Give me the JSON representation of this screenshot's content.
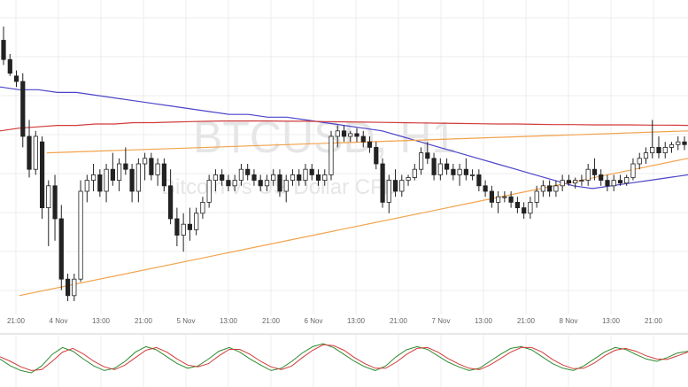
{
  "watermark": {
    "symbol": "BTCUSD, H1",
    "description": "Bitcoin vs US Dollar CFD"
  },
  "colors": {
    "background": "#ffffff",
    "grid": "#ececec",
    "candle_up": "#ffffff",
    "candle_down": "#222222",
    "wick": "#222222",
    "sma_fast": "#4b44c9",
    "sma_slow": "#d23b3b",
    "trendline": "#f2a24b",
    "stoch_k": "#2e8b2e",
    "stoch_d": "#d23b3b",
    "separator": "#cfcfcf"
  },
  "chart_data": [
    {
      "type": "candlestick",
      "title": "",
      "instrument": "BTCUSD, H1",
      "x_tick_labels": [
        "21:00",
        "4 Nov",
        "13:00",
        "21:00",
        "5 Nov",
        "13:00",
        "21:00",
        "6 Nov",
        "13:00",
        "21:00",
        "7 Nov",
        "13:00",
        "21:00",
        "8 Nov",
        "13:00",
        "21:00"
      ],
      "grid": true,
      "candles_ohlc_relative": [
        [
          0.95,
          1.0,
          0.86,
          0.88
        ],
        [
          0.88,
          0.9,
          0.82,
          0.83
        ],
        [
          0.82,
          0.84,
          0.78,
          0.8
        ],
        [
          0.8,
          0.83,
          0.56,
          0.6
        ],
        [
          0.6,
          0.66,
          0.45,
          0.48
        ],
        [
          0.48,
          0.62,
          0.46,
          0.6
        ],
        [
          0.58,
          0.6,
          0.3,
          0.34
        ],
        [
          0.34,
          0.44,
          0.2,
          0.42
        ],
        [
          0.42,
          0.46,
          0.22,
          0.3
        ],
        [
          0.3,
          0.35,
          0.04,
          0.08
        ],
        [
          0.08,
          0.1,
          0.0,
          0.02
        ],
        [
          0.02,
          0.1,
          0.0,
          0.08
        ],
        [
          0.08,
          0.44,
          0.07,
          0.4
        ],
        [
          0.4,
          0.46,
          0.36,
          0.44
        ],
        [
          0.44,
          0.5,
          0.4,
          0.46
        ],
        [
          0.46,
          0.48,
          0.38,
          0.4
        ],
        [
          0.4,
          0.5,
          0.36,
          0.48
        ],
        [
          0.48,
          0.54,
          0.42,
          0.44
        ],
        [
          0.44,
          0.52,
          0.4,
          0.5
        ],
        [
          0.5,
          0.56,
          0.46,
          0.48
        ],
        [
          0.48,
          0.5,
          0.36,
          0.4
        ],
        [
          0.4,
          0.52,
          0.36,
          0.5
        ],
        [
          0.5,
          0.54,
          0.44,
          0.52
        ],
        [
          0.52,
          0.54,
          0.44,
          0.46
        ],
        [
          0.46,
          0.52,
          0.42,
          0.5
        ],
        [
          0.5,
          0.52,
          0.4,
          0.42
        ],
        [
          0.42,
          0.48,
          0.28,
          0.3
        ],
        [
          0.3,
          0.34,
          0.2,
          0.24
        ],
        [
          0.24,
          0.32,
          0.18,
          0.28
        ],
        [
          0.28,
          0.34,
          0.22,
          0.26
        ],
        [
          0.26,
          0.34,
          0.24,
          0.32
        ],
        [
          0.32,
          0.38,
          0.3,
          0.36
        ],
        [
          0.36,
          0.46,
          0.34,
          0.44
        ],
        [
          0.44,
          0.48,
          0.4,
          0.46
        ],
        [
          0.46,
          0.48,
          0.42,
          0.44
        ],
        [
          0.44,
          0.46,
          0.4,
          0.42
        ],
        [
          0.42,
          0.46,
          0.4,
          0.44
        ],
        [
          0.44,
          0.5,
          0.42,
          0.48
        ],
        [
          0.48,
          0.5,
          0.44,
          0.46
        ],
        [
          0.46,
          0.48,
          0.42,
          0.44
        ],
        [
          0.44,
          0.46,
          0.4,
          0.42
        ],
        [
          0.42,
          0.46,
          0.4,
          0.44
        ],
        [
          0.44,
          0.48,
          0.42,
          0.46
        ],
        [
          0.46,
          0.48,
          0.38,
          0.4
        ],
        [
          0.4,
          0.46,
          0.36,
          0.44
        ],
        [
          0.44,
          0.48,
          0.42,
          0.46
        ],
        [
          0.46,
          0.48,
          0.42,
          0.44
        ],
        [
          0.44,
          0.5,
          0.42,
          0.48
        ],
        [
          0.48,
          0.5,
          0.44,
          0.46
        ],
        [
          0.46,
          0.48,
          0.42,
          0.44
        ],
        [
          0.44,
          0.48,
          0.42,
          0.46
        ],
        [
          0.46,
          0.62,
          0.44,
          0.6
        ],
        [
          0.6,
          0.64,
          0.56,
          0.62
        ],
        [
          0.62,
          0.64,
          0.58,
          0.6
        ],
        [
          0.6,
          0.62,
          0.58,
          0.61
        ],
        [
          0.61,
          0.63,
          0.58,
          0.6
        ],
        [
          0.6,
          0.62,
          0.56,
          0.58
        ],
        [
          0.58,
          0.6,
          0.54,
          0.56
        ],
        [
          0.56,
          0.58,
          0.48,
          0.5
        ],
        [
          0.5,
          0.52,
          0.34,
          0.36
        ],
        [
          0.36,
          0.46,
          0.32,
          0.44
        ],
        [
          0.44,
          0.48,
          0.38,
          0.4
        ],
        [
          0.4,
          0.46,
          0.38,
          0.44
        ],
        [
          0.44,
          0.46,
          0.42,
          0.45
        ],
        [
          0.45,
          0.5,
          0.44,
          0.48
        ],
        [
          0.48,
          0.56,
          0.46,
          0.54
        ],
        [
          0.54,
          0.58,
          0.5,
          0.52
        ],
        [
          0.52,
          0.54,
          0.44,
          0.46
        ],
        [
          0.46,
          0.52,
          0.44,
          0.5
        ],
        [
          0.5,
          0.52,
          0.46,
          0.48
        ],
        [
          0.48,
          0.5,
          0.44,
          0.46
        ],
        [
          0.46,
          0.5,
          0.42,
          0.48
        ],
        [
          0.48,
          0.52,
          0.44,
          0.46
        ],
        [
          0.46,
          0.48,
          0.44,
          0.46
        ],
        [
          0.46,
          0.48,
          0.4,
          0.42
        ],
        [
          0.42,
          0.44,
          0.38,
          0.4
        ],
        [
          0.4,
          0.42,
          0.34,
          0.36
        ],
        [
          0.36,
          0.4,
          0.32,
          0.38
        ],
        [
          0.38,
          0.4,
          0.36,
          0.38
        ],
        [
          0.38,
          0.4,
          0.34,
          0.36
        ],
        [
          0.36,
          0.38,
          0.32,
          0.34
        ],
        [
          0.34,
          0.36,
          0.3,
          0.32
        ],
        [
          0.32,
          0.38,
          0.3,
          0.36
        ],
        [
          0.36,
          0.42,
          0.34,
          0.4
        ],
        [
          0.4,
          0.44,
          0.38,
          0.42
        ],
        [
          0.42,
          0.44,
          0.38,
          0.4
        ],
        [
          0.4,
          0.44,
          0.38,
          0.42
        ],
        [
          0.42,
          0.46,
          0.4,
          0.44
        ],
        [
          0.44,
          0.46,
          0.42,
          0.43
        ],
        [
          0.43,
          0.45,
          0.41,
          0.44
        ],
        [
          0.44,
          0.46,
          0.42,
          0.44
        ],
        [
          0.44,
          0.5,
          0.42,
          0.48
        ],
        [
          0.48,
          0.52,
          0.44,
          0.46
        ],
        [
          0.46,
          0.48,
          0.42,
          0.44
        ],
        [
          0.44,
          0.46,
          0.4,
          0.42
        ],
        [
          0.42,
          0.46,
          0.4,
          0.44
        ],
        [
          0.44,
          0.46,
          0.42,
          0.43
        ],
        [
          0.43,
          0.46,
          0.42,
          0.45
        ],
        [
          0.45,
          0.52,
          0.44,
          0.5
        ],
        [
          0.5,
          0.54,
          0.48,
          0.52
        ],
        [
          0.52,
          0.56,
          0.5,
          0.54
        ],
        [
          0.54,
          0.66,
          0.52,
          0.56
        ],
        [
          0.56,
          0.6,
          0.52,
          0.54
        ],
        [
          0.54,
          0.58,
          0.52,
          0.56
        ],
        [
          0.56,
          0.58,
          0.54,
          0.57
        ],
        [
          0.57,
          0.6,
          0.55,
          0.58
        ],
        [
          0.58,
          0.6,
          0.55,
          0.57
        ]
      ],
      "series": [
        {
          "name": "",
          "role": "sma_fast",
          "values_relative": [
            0.78,
            0.77,
            0.77,
            0.76,
            0.76,
            0.75,
            0.74,
            0.73,
            0.72,
            0.71,
            0.7,
            0.69,
            0.68,
            0.68,
            0.67,
            0.67,
            0.66,
            0.65,
            0.64,
            0.63,
            0.62,
            0.6,
            0.58,
            0.56,
            0.54,
            0.52,
            0.5,
            0.48,
            0.46,
            0.44,
            0.42,
            0.41,
            0.42,
            0.43,
            0.44,
            0.45,
            0.46
          ]
        },
        {
          "name": "",
          "role": "sma_slow",
          "values_relative": [
            0.62,
            0.63,
            0.635,
            0.64,
            0.64,
            0.645,
            0.645,
            0.65,
            0.65,
            0.652,
            0.654,
            0.655,
            0.656,
            0.656,
            0.656,
            0.655,
            0.655,
            0.654,
            0.653,
            0.652,
            0.651,
            0.65,
            0.649,
            0.648,
            0.647,
            0.646,
            0.645,
            0.645,
            0.644,
            0.643,
            0.643,
            0.642,
            0.642,
            0.642,
            0.641,
            0.641,
            0.64
          ]
        }
      ],
      "trendlines_relative": [
        {
          "role": "resistance",
          "from": [
            0.068,
            0.54
          ],
          "to": [
            1.0,
            0.62
          ]
        },
        {
          "role": "support",
          "from": [
            0.028,
            0.02
          ],
          "to": [
            1.0,
            0.52
          ]
        }
      ]
    },
    {
      "type": "line",
      "indicator": "stochastic",
      "title": "",
      "series": [
        {
          "name": "",
          "role": "stoch_k",
          "values": [
            55,
            40,
            30,
            25,
            40,
            65,
            80,
            72,
            55,
            40,
            30,
            35,
            50,
            70,
            82,
            75,
            60,
            45,
            35,
            40,
            55,
            72,
            80,
            70,
            55,
            42,
            30,
            35,
            50,
            68,
            82,
            88,
            80,
            65,
            50,
            38,
            30,
            40,
            60,
            75,
            82,
            76,
            62,
            48,
            38,
            30,
            35,
            50,
            65,
            78,
            82,
            75,
            60,
            45,
            35,
            30,
            40,
            55,
            70,
            80,
            76,
            65,
            55,
            50,
            58,
            68,
            72
          ]
        },
        {
          "name": "",
          "role": "stoch_d",
          "values": [
            60,
            50,
            38,
            30,
            32,
            50,
            70,
            78,
            66,
            50,
            38,
            32,
            42,
            58,
            74,
            80,
            70,
            55,
            42,
            38,
            45,
            62,
            76,
            76,
            65,
            50,
            38,
            32,
            40,
            58,
            74,
            86,
            84,
            74,
            58,
            45,
            35,
            35,
            48,
            65,
            78,
            80,
            70,
            56,
            44,
            35,
            32,
            42,
            56,
            70,
            80,
            80,
            70,
            54,
            42,
            34,
            35,
            46,
            62,
            74,
            78,
            72,
            62,
            55,
            54,
            62,
            70
          ]
        }
      ]
    }
  ]
}
